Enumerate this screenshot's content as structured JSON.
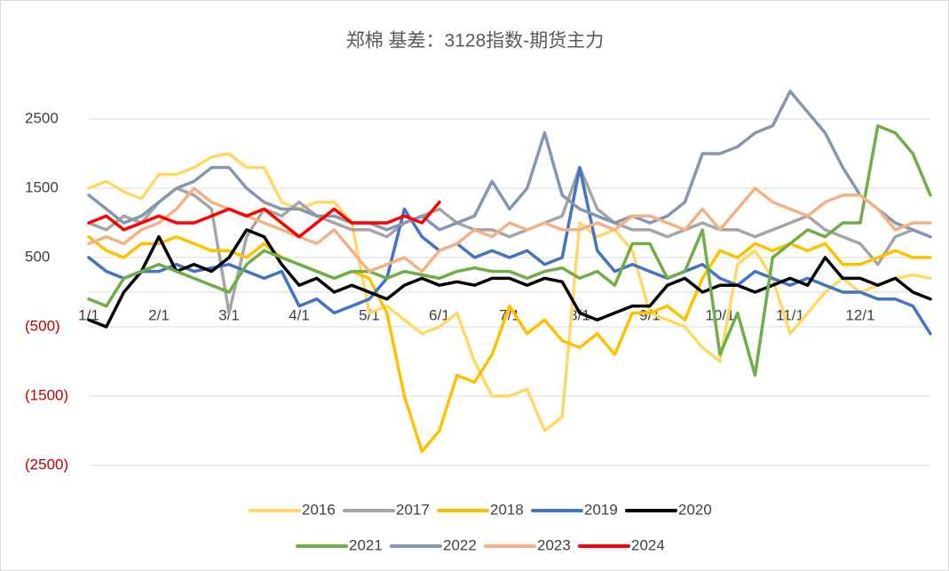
{
  "chart_data": {
    "type": "line",
    "title": "郑棉 基差：3128指数-期货主力",
    "categories": [
      "1/1",
      null,
      null,
      null,
      "2/1",
      null,
      null,
      null,
      "3/1",
      null,
      null,
      null,
      "4/1",
      null,
      null,
      null,
      "5/1",
      null,
      null,
      null,
      "6/1",
      null,
      null,
      null,
      "7/1",
      null,
      null,
      null,
      "8/1",
      null,
      null,
      null,
      "9/1",
      null,
      null,
      null,
      "10/1",
      null,
      null,
      null,
      "11/1",
      null,
      null,
      null,
      "12/1",
      null,
      null,
      null,
      null
    ],
    "ylim": [
      -2500,
      3000
    ],
    "yticks": [
      {
        "value": -2500,
        "label": "(2500)"
      },
      {
        "value": -1500,
        "label": "(1500)"
      },
      {
        "value": -500,
        "label": "(500)"
      },
      500,
      1500,
      2500
    ],
    "grid": true,
    "series": [
      {
        "name": "2016",
        "color": "#FFD966",
        "values": [
          1500,
          1600,
          1450,
          1350,
          1700,
          1700,
          1800,
          1950,
          2000,
          1800,
          1800,
          1300,
          1200,
          1300,
          1300,
          1000,
          -300,
          -200,
          -400,
          -600,
          -500,
          -300,
          -1000,
          -1500,
          -1500,
          -1400,
          -2000,
          -1800,
          1000,
          800,
          900,
          600,
          -300,
          -400,
          -500,
          -800,
          -1000,
          400,
          600,
          200,
          -600,
          -300,
          0,
          200,
          0,
          100,
          200,
          250,
          200
        ]
      },
      {
        "name": "2017",
        "color": "#A5A5A5",
        "values": [
          1000,
          900,
          1100,
          1000,
          1300,
          1500,
          1400,
          1200,
          -300,
          800,
          1200,
          1100,
          1300,
          1100,
          1000,
          900,
          900,
          800,
          1000,
          1100,
          1200,
          1000,
          900,
          900,
          800,
          900,
          1000,
          1100,
          1800,
          1200,
          1000,
          900,
          900,
          800,
          900,
          1000,
          900,
          900,
          800,
          900,
          1000,
          1100,
          900,
          800,
          700,
          400,
          800,
          900,
          800
        ]
      },
      {
        "name": "2018",
        "color": "#FFC000",
        "values": [
          800,
          600,
          500,
          700,
          700,
          800,
          700,
          600,
          600,
          500,
          700,
          500,
          400,
          300,
          200,
          300,
          200,
          -300,
          -1500,
          -2300,
          -2000,
          -1200,
          -1300,
          -900,
          -200,
          -600,
          -400,
          -700,
          -800,
          -600,
          -900,
          -300,
          -300,
          -200,
          -400,
          200,
          600,
          500,
          700,
          600,
          700,
          600,
          700,
          400,
          400,
          500,
          600,
          500,
          500
        ]
      },
      {
        "name": "2019",
        "color": "#4472C4",
        "values": [
          500,
          300,
          200,
          300,
          300,
          400,
          300,
          350,
          400,
          300,
          200,
          300,
          -200,
          -100,
          -300,
          -200,
          -100,
          200,
          1200,
          800,
          600,
          700,
          500,
          600,
          500,
          600,
          400,
          500,
          1800,
          600,
          300,
          400,
          300,
          200,
          300,
          400,
          200,
          100,
          300,
          200,
          100,
          200,
          100,
          0,
          0,
          -100,
          -100,
          -200,
          -600
        ]
      },
      {
        "name": "2020",
        "color": "#000000",
        "values": [
          -400,
          -500,
          0,
          300,
          800,
          300,
          400,
          300,
          500,
          900,
          800,
          400,
          100,
          200,
          0,
          100,
          0,
          -100,
          100,
          200,
          100,
          150,
          100,
          200,
          200,
          100,
          200,
          150,
          -300,
          -400,
          -300,
          -200,
          -200,
          100,
          200,
          0,
          100,
          100,
          0,
          100,
          200,
          100,
          500,
          200,
          200,
          100,
          200,
          0,
          -100
        ]
      },
      {
        "name": "2021",
        "color": "#70AD47",
        "values": [
          -100,
          -200,
          200,
          300,
          400,
          300,
          200,
          100,
          0,
          400,
          600,
          500,
          400,
          300,
          200,
          300,
          300,
          200,
          300,
          250,
          200,
          300,
          350,
          300,
          300,
          200,
          300,
          350,
          200,
          300,
          100,
          700,
          700,
          200,
          300,
          900,
          -900,
          -300,
          -1200,
          500,
          700,
          900,
          800,
          1000,
          1000,
          2400,
          2300,
          2000,
          1400
        ]
      },
      {
        "name": "2022",
        "color": "#8497B0",
        "values": [
          1400,
          1200,
          1000,
          1100,
          1300,
          1500,
          1600,
          1800,
          1800,
          1500,
          1300,
          1200,
          1200,
          1100,
          1100,
          1000,
          1000,
          900,
          1000,
          1100,
          900,
          1000,
          1100,
          1600,
          1200,
          1500,
          2300,
          1400,
          1200,
          1100,
          1000,
          1100,
          1000,
          1100,
          1300,
          2000,
          2000,
          2100,
          2300,
          2400,
          2900,
          2600,
          2300,
          1800,
          1400,
          1200,
          1000,
          900,
          800
        ]
      },
      {
        "name": "2023",
        "color": "#F4B183",
        "values": [
          700,
          800,
          700,
          900,
          1000,
          1200,
          1500,
          1300,
          1200,
          1100,
          1000,
          900,
          800,
          700,
          900,
          600,
          300,
          400,
          500,
          300,
          600,
          700,
          900,
          800,
          1000,
          900,
          1000,
          900,
          900,
          1000,
          900,
          1100,
          1100,
          1000,
          900,
          1200,
          900,
          1200,
          1500,
          1300,
          1200,
          1100,
          1300,
          1400,
          1400,
          1200,
          900,
          1000,
          1000
        ]
      },
      {
        "name": "2024",
        "color": "#FF0000",
        "values": [
          1000,
          1100,
          900,
          1000,
          1100,
          1000,
          1000,
          1100,
          1200,
          1100,
          1200,
          1000,
          800,
          1000,
          1200,
          1000,
          1000,
          1000,
          1100,
          1000,
          1300,
          null,
          null,
          null,
          null,
          null,
          null,
          null,
          null,
          null,
          null,
          null,
          null,
          null,
          null,
          null,
          null,
          null,
          null,
          null,
          null,
          null,
          null,
          null,
          null,
          null,
          null,
          null,
          null
        ]
      }
    ]
  }
}
